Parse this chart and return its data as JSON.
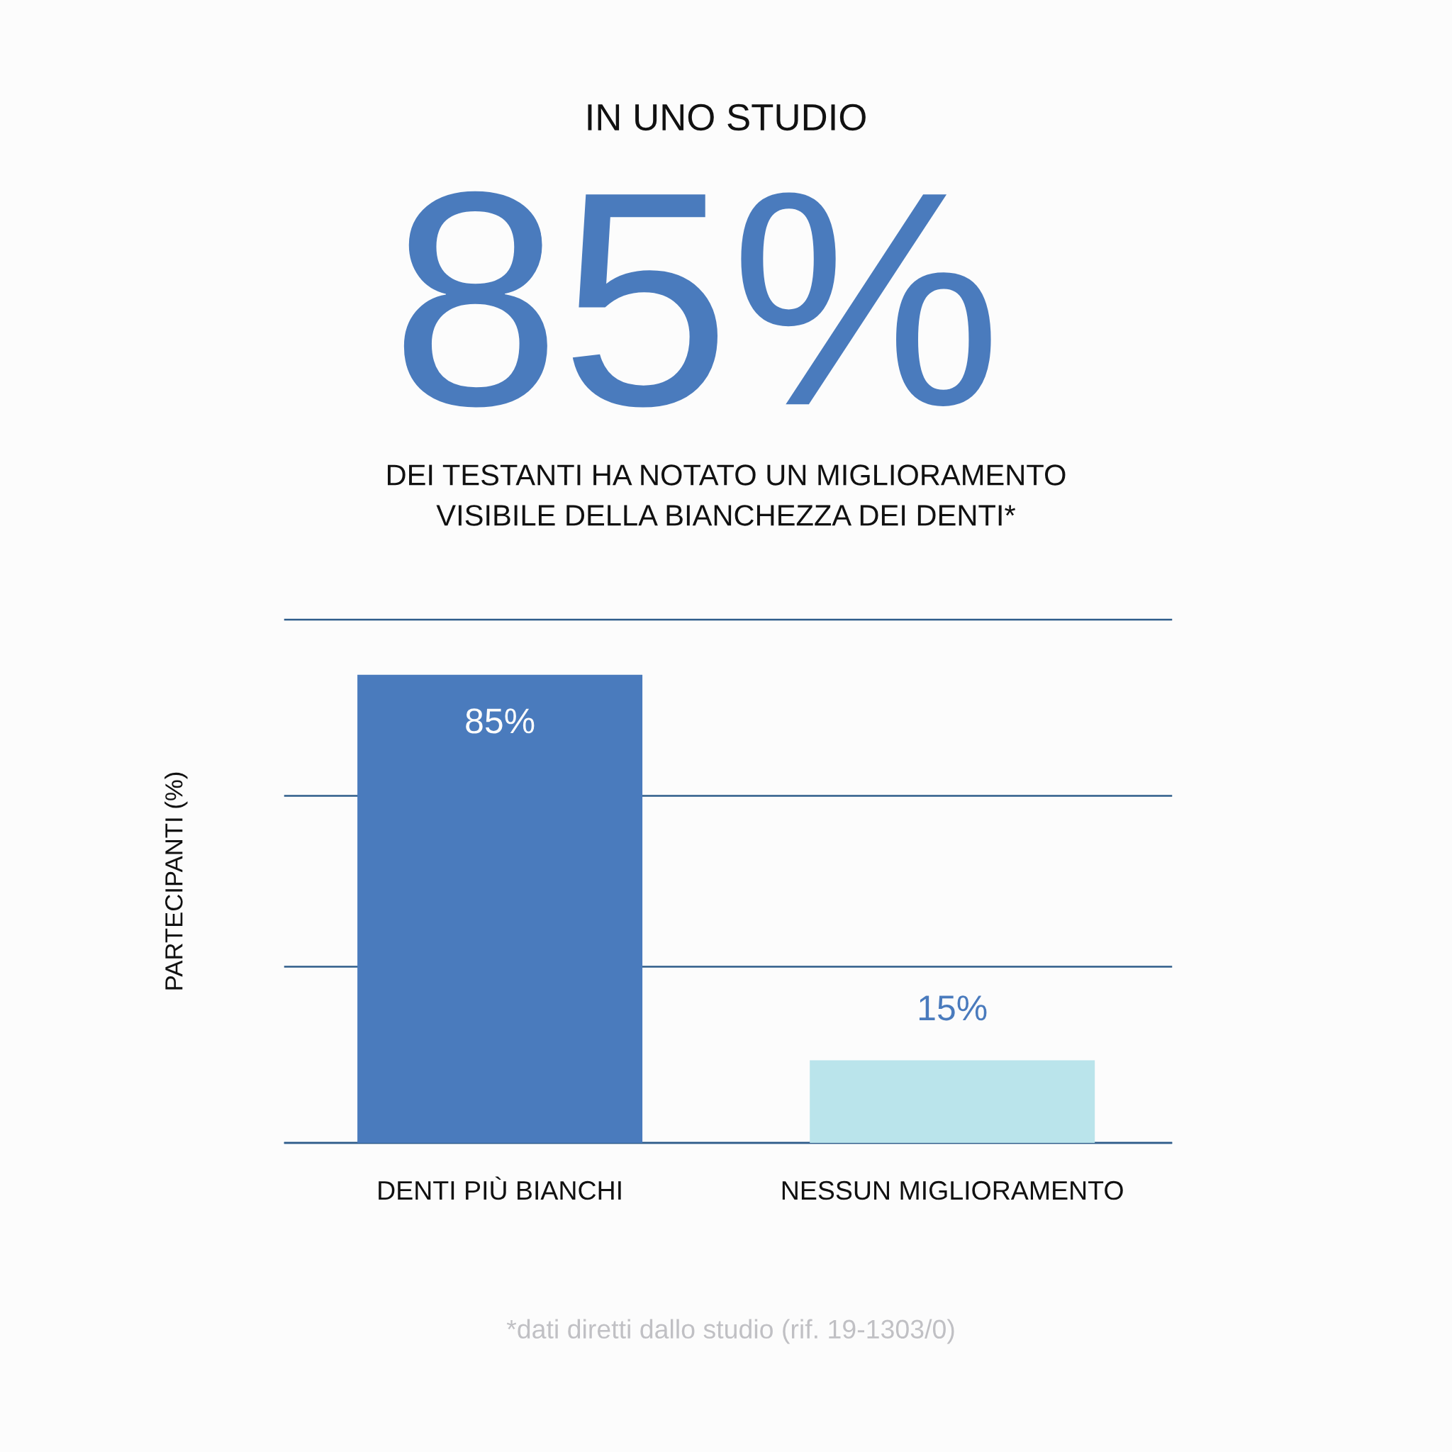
{
  "chart_data": {
    "type": "bar",
    "title": "IN UNO STUDIO",
    "subtitle": "DEI TESTANTI HA NOTATO UN MIGLIORAMENTO\nVISIBILE DELLA BIANCHEZZA DEI DENTI*",
    "ylabel": "PARTECIPANTI (%)",
    "categories": [
      "DENTI PIÙ BIANCHI",
      "NESSUN MIGLIORAMENTO"
    ],
    "values": [
      85,
      15
    ],
    "colors": [
      "#4a7bbd",
      "#bae4eb"
    ],
    "value_labels": [
      "85%",
      "15%"
    ],
    "ylim": [
      0,
      95
    ],
    "yticks": [
      {
        "value": 0,
        "label": null
      },
      {
        "value": 32,
        "label": null
      },
      {
        "value": 63,
        "label": null
      },
      {
        "value": 95,
        "label": null
      }
    ],
    "grid": "y",
    "tick_labels": "x",
    "annotations": [
      "85%",
      "*dati diretti dallo studio (rif. 19-1303/0)"
    ]
  }
}
